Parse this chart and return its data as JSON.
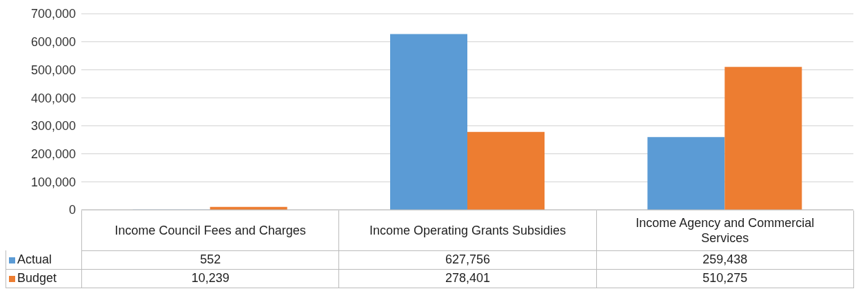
{
  "chart_data": {
    "type": "bar",
    "categories": [
      "Income Council Fees and Charges",
      "Income Operating Grants Subsidies",
      "Income Agency and Commercial Services"
    ],
    "series": [
      {
        "name": "Actual",
        "color": "#5b9bd5",
        "values": [
          552,
          627756,
          259438
        ],
        "value_labels": [
          "552",
          "627,756",
          "259,438"
        ]
      },
      {
        "name": "Budget",
        "color": "#ed7d31",
        "values": [
          10239,
          278401,
          510275
        ],
        "value_labels": [
          "10,239",
          "278,401",
          "510,275"
        ]
      }
    ],
    "ylim": [
      0,
      700000
    ],
    "yticks": [
      {
        "value": 0,
        "label": "0"
      },
      {
        "value": 100000,
        "label": "100,000"
      },
      {
        "value": 200000,
        "label": "200,000"
      },
      {
        "value": 300000,
        "label": "300,000"
      },
      {
        "value": 400000,
        "label": "400,000"
      },
      {
        "value": 500000,
        "label": "500,000"
      },
      {
        "value": 600000,
        "label": "600,000"
      },
      {
        "value": 700000,
        "label": "700,000"
      }
    ],
    "grid": "y",
    "legend": "bottom left"
  }
}
